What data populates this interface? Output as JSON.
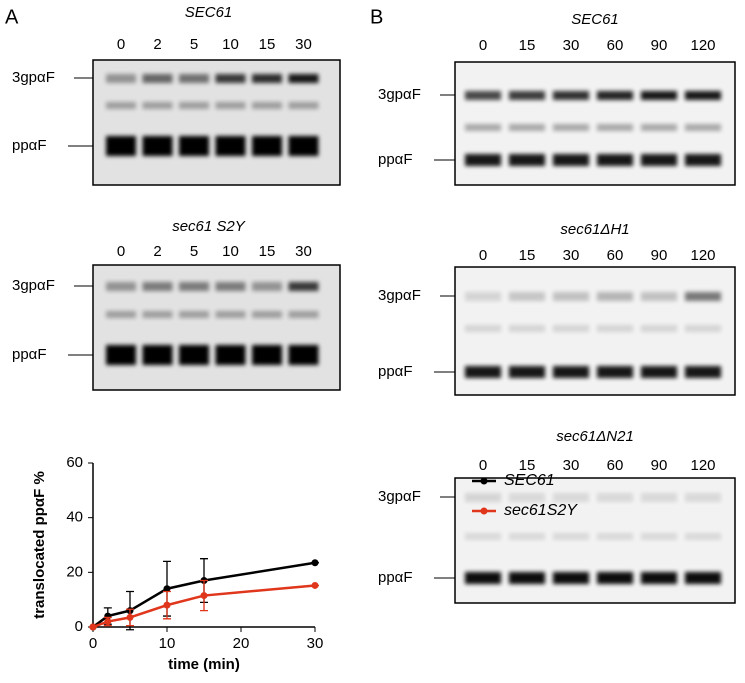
{
  "panels": [
    {
      "label": "A",
      "gels": [
        {
          "title": "SEC61",
          "lanes": [
            "0",
            "2",
            "5",
            "10",
            "15",
            "30"
          ],
          "bands": [
            "3gpαF",
            "ppαF"
          ]
        },
        {
          "title": "sec61 S2Y",
          "lanes": [
            "0",
            "2",
            "5",
            "10",
            "15",
            "30"
          ],
          "bands": [
            "3gpαF",
            "ppαF"
          ]
        }
      ]
    },
    {
      "label": "B",
      "gels": [
        {
          "title": "SEC61",
          "lanes": [
            "0",
            "15",
            "30",
            "60",
            "90",
            "120"
          ],
          "bands": [
            "3gpαF",
            "ppαF"
          ]
        },
        {
          "title": "sec61ΔH1",
          "lanes": [
            "0",
            "15",
            "30",
            "60",
            "90",
            "120"
          ],
          "bands": [
            "3gpαF",
            "ppαF"
          ]
        },
        {
          "title": "sec61ΔN21",
          "lanes": [
            "0",
            "15",
            "30",
            "60",
            "90",
            "120"
          ],
          "bands": [
            "3gpαF",
            "ppαF"
          ]
        }
      ]
    }
  ],
  "chart_data": {
    "type": "line",
    "xlabel": "time (min)",
    "ylabel": "translocated ppαF %",
    "x": [
      0,
      2,
      5,
      10,
      15,
      30
    ],
    "series": [
      {
        "name": "SEC61",
        "color": "#000000",
        "values": [
          0,
          4,
          6,
          14,
          17,
          23.5
        ],
        "errors": [
          0,
          3,
          7,
          10,
          8,
          0
        ]
      },
      {
        "name": "sec61S2Y",
        "color": "#e0361c",
        "values": [
          0,
          2,
          3.5,
          8,
          11.5,
          15.2
        ],
        "errors": [
          0,
          1.5,
          3,
          5,
          5.5,
          0
        ]
      }
    ],
    "xlim": [
      0,
      30
    ],
    "ylim": [
      0,
      60
    ],
    "xticks": [
      0,
      10,
      20,
      30
    ],
    "yticks": [
      0,
      20,
      40,
      60
    ]
  }
}
